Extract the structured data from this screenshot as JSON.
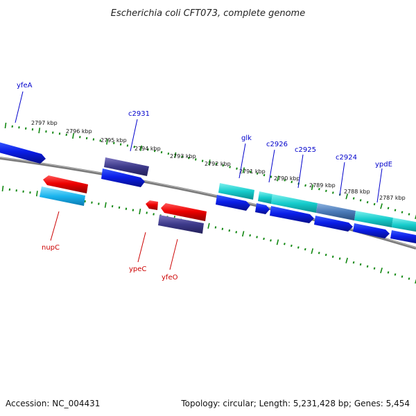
{
  "title": "Escherichia coli CFT073, complete genome",
  "footer": {
    "accession": "Accession: NC_004431",
    "summary": "Topology: circular; Length: 5,231,428 bp; Genes: 5,454"
  },
  "colors": {
    "forward_label": "#0000cc",
    "reverse_label": "#cc0000",
    "ticks": "#118811",
    "backbone": "#808080"
  },
  "scale": {
    "unit": "kbp",
    "upper_labels": [
      "2797 kbp",
      "2796 kbp",
      "2795 kbp",
      "2794 kbp",
      "2793 kbp",
      "2792 kbp",
      "2791 kbp",
      "2790 kbp",
      "2789 kbp",
      "2788 kbp",
      "2787 kbp"
    ]
  },
  "genes": [
    {
      "name": "yfeA",
      "strand": "forward"
    },
    {
      "name": "c2931",
      "strand": "forward"
    },
    {
      "name": "glk",
      "strand": "forward"
    },
    {
      "name": "c2926",
      "strand": "forward"
    },
    {
      "name": "c2925",
      "strand": "forward"
    },
    {
      "name": "c2924",
      "strand": "forward"
    },
    {
      "name": "ypdE",
      "strand": "forward"
    },
    {
      "name": "nupC",
      "strand": "reverse"
    },
    {
      "name": "ypeC",
      "strand": "reverse"
    },
    {
      "name": "yfeO",
      "strand": "reverse"
    }
  ]
}
